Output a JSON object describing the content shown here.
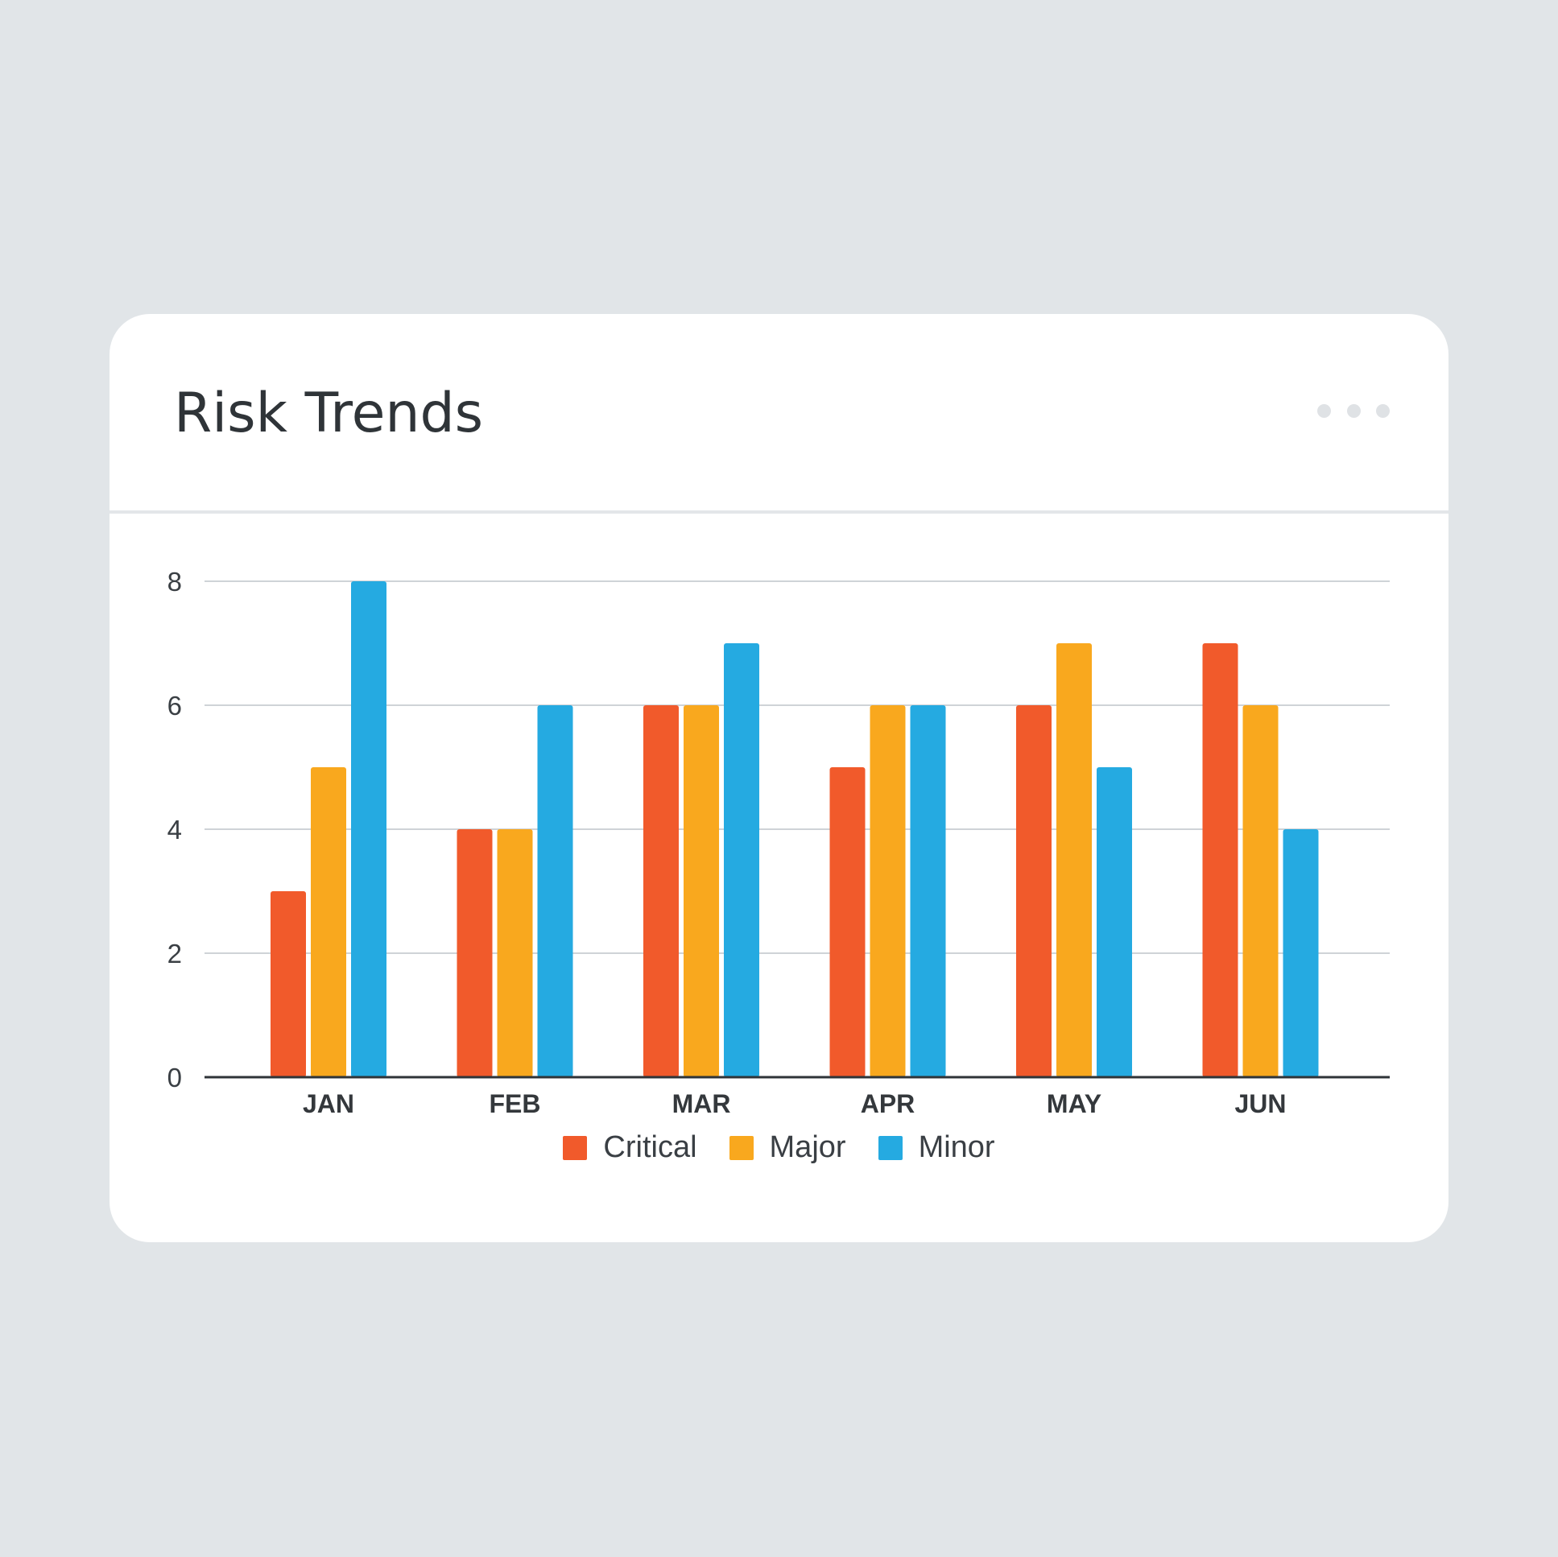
{
  "card": {
    "title": "Risk Trends",
    "menu_icon": "more-horizontal-icon"
  },
  "colors": {
    "page_background": "#e1e5e8",
    "card_background": "#ffffff",
    "gridline": "#cfd3d7",
    "axis": "#2f3438",
    "critical": "#f15a2b",
    "major": "#f9a81e",
    "minor": "#25aae1"
  },
  "chart_data": {
    "type": "bar",
    "categories": [
      "JAN",
      "FEB",
      "MAR",
      "APR",
      "MAY",
      "JUN"
    ],
    "series": [
      {
        "name": "Critical",
        "color": "#f15a2b",
        "values": [
          3,
          4,
          6,
          5,
          6,
          7
        ]
      },
      {
        "name": "Major",
        "color": "#f9a81e",
        "values": [
          5,
          4,
          6,
          6,
          7,
          6
        ]
      },
      {
        "name": "Minor",
        "color": "#25aae1",
        "values": [
          8,
          6,
          7,
          6,
          5,
          4
        ]
      }
    ],
    "yticks": [
      0,
      2,
      4,
      6,
      8
    ],
    "ylim": [
      0,
      8
    ],
    "grid": true,
    "legend_position": "bottom-center"
  }
}
